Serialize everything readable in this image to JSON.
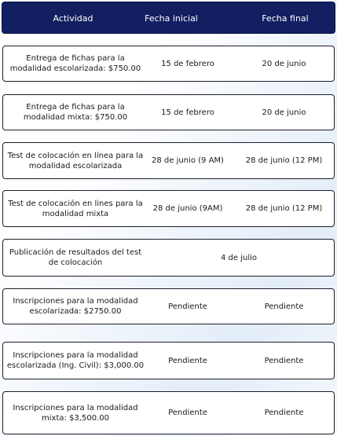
{
  "header": {
    "col_activity": "Actividad",
    "col_start": "Fecha inicial",
    "col_end": "Fecha final"
  },
  "rows": [
    {
      "activity": "Entrega de fichas para la modalidad escolarizada: $750.00",
      "start": "15 de febrero",
      "end": "20 de junio"
    },
    {
      "activity": "Entrega de fichas para la modalidad mixta:  $750.00",
      "start": "15 de febrero",
      "end": "20 de junio"
    },
    {
      "activity": "Test de colocación en línea para la modalidad escolarizada",
      "start": "28 de junio (9 AM)",
      "end": "28 de junio (12 PM)"
    },
    {
      "activity": "Test de colocación en lines para la modalidad mixta",
      "start": "28 de junio (9AM)",
      "end": "28 de junio (12 PM)"
    },
    {
      "activity": "Publicación de resultados del test de colocación",
      "date": "4 de julio"
    },
    {
      "activity": "Inscripciones para la modalidad escolarizada: $2750.00",
      "start": "Pendiente",
      "end": "Pendiente"
    },
    {
      "activity": "Inscripciones para la modalidad escolarizada (Ing. Civil): $3,000.00",
      "start": "Pendiente",
      "end": "Pendiente"
    },
    {
      "activity": "Inscripciones para la modalidad mixta: $3,500.00",
      "start": "Pendiente",
      "end": "Pendiente"
    }
  ]
}
